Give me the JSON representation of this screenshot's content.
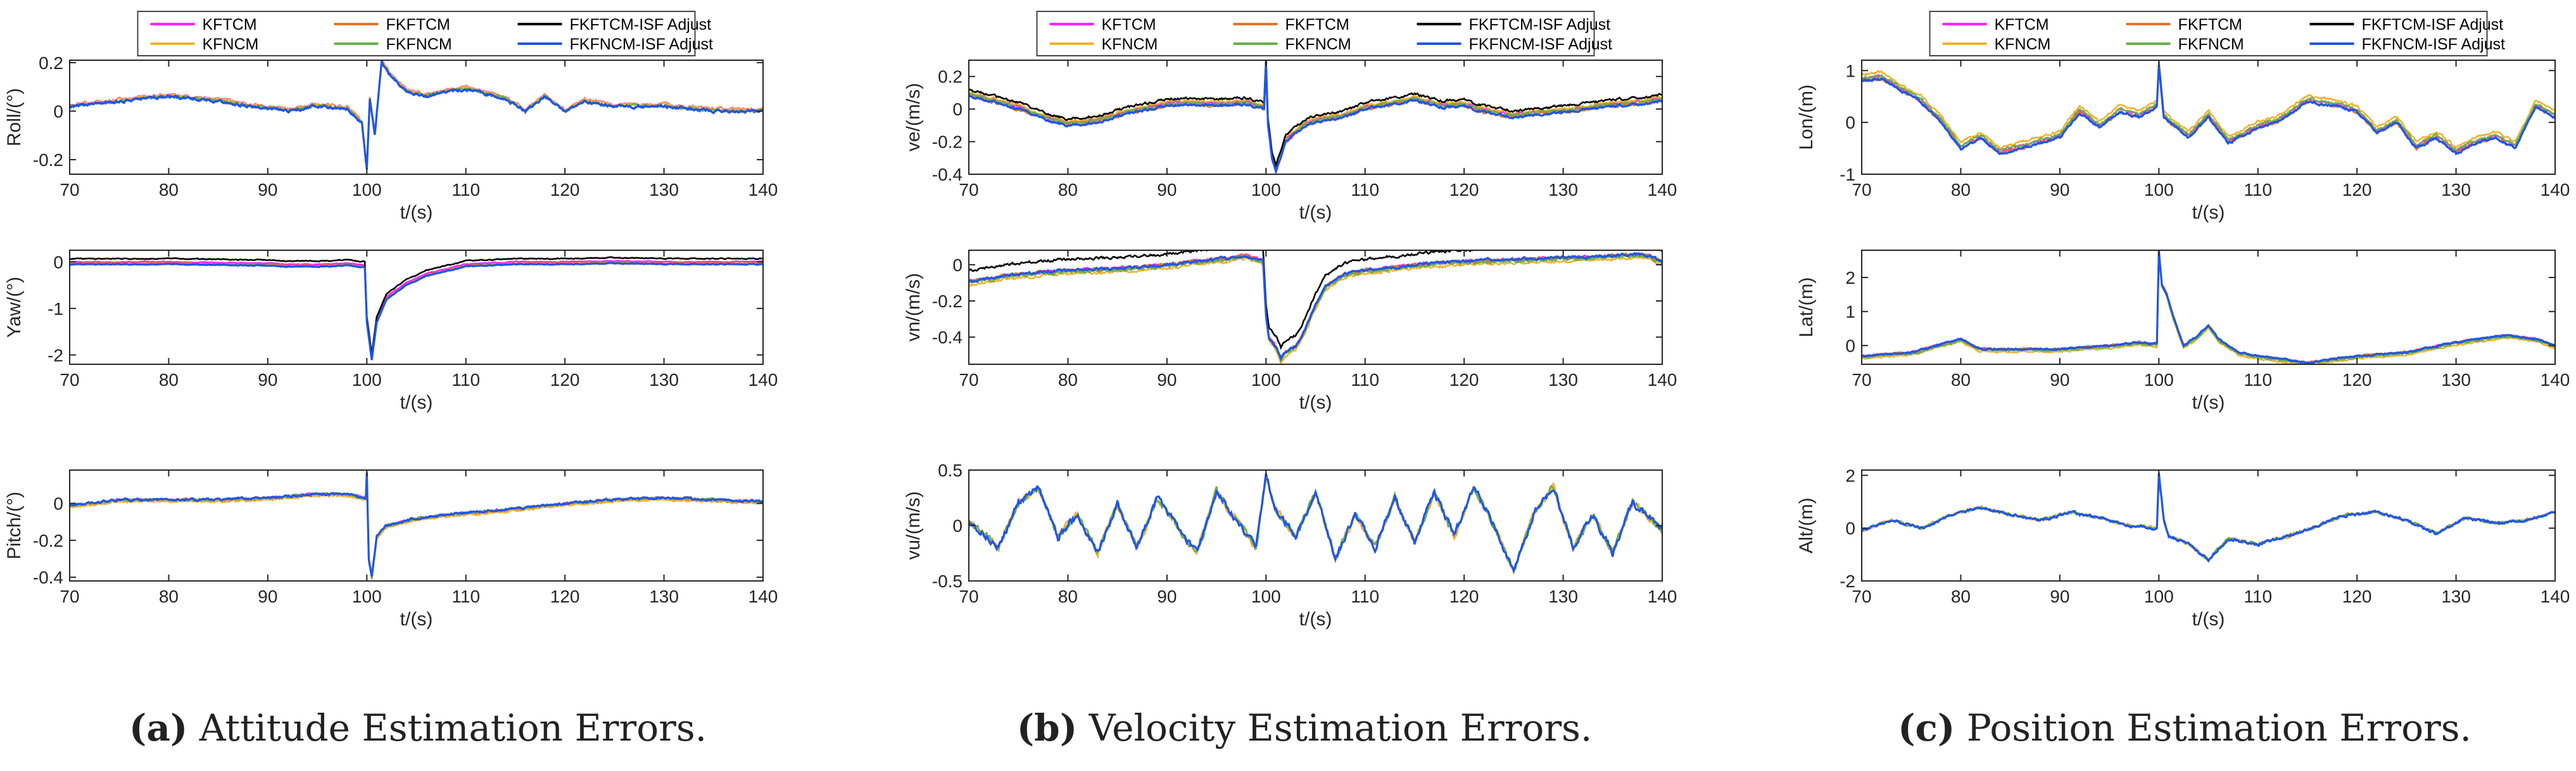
{
  "legend_entries": [
    {
      "name": "KFTCM",
      "color": "#ff22ff"
    },
    {
      "name": "FKFTCM",
      "color": "#e4742c"
    },
    {
      "name": "FKFTCM-ISF Adjust",
      "color": "#000000"
    },
    {
      "name": "KFNCM",
      "color": "#f2b32c"
    },
    {
      "name": "FKFNCM",
      "color": "#6ab04c"
    },
    {
      "name": "FKFNCM-ISF Adjust",
      "color": "#1f56e8"
    }
  ],
  "captions": [
    {
      "letter": "(a)",
      "text": " Attitude Estimation Errors."
    },
    {
      "letter": "(b)",
      "text": " Velocity Estimation Errors."
    },
    {
      "letter": "(c)",
      "text": " Position Estimation Errors."
    }
  ],
  "chart_data": [
    {
      "type": "line",
      "panel": "a",
      "row": 0,
      "title": "",
      "xlabel": "t/(s)",
      "ylabel": "Roll/(°)",
      "xlim": [
        70,
        140
      ],
      "ylim": [
        -0.26,
        0.21
      ],
      "xticks": [
        "70",
        "80",
        "90",
        "100",
        "110",
        "120",
        "130",
        "140"
      ],
      "yticks": [
        "-0.2",
        "0",
        "0.2"
      ],
      "series_names": [
        "KFTCM",
        "FKFTCM",
        "FKFTCM-ISF Adjust",
        "KFNCM",
        "FKFNCM",
        "FKFNCM-ISF Adjust"
      ],
      "x": [
        70,
        75,
        80,
        85,
        88,
        92,
        95,
        98,
        99.5,
        100,
        100.3,
        100.8,
        101.5,
        102.5,
        104,
        106,
        108,
        110,
        112,
        114,
        116,
        118,
        120,
        122,
        125,
        130,
        135,
        140
      ],
      "y": [
        0.02,
        0.04,
        0.06,
        0.04,
        0.02,
        0.0,
        0.02,
        0.01,
        -0.05,
        -0.24,
        0.05,
        -0.1,
        0.2,
        0.14,
        0.08,
        0.06,
        0.08,
        0.09,
        0.07,
        0.05,
        0.0,
        0.06,
        0.0,
        0.04,
        0.02,
        0.02,
        0.0,
        0.0
      ],
      "noise": 0.012,
      "seed": 11,
      "offset": {
        "KFTCM": 0.008,
        "FKFTCM": 0.004,
        "KFNCM": 0.006,
        "FKFNCM": 0.002,
        "FKFTCM-ISF Adjust": 0.001
      }
    },
    {
      "type": "line",
      "panel": "a",
      "row": 1,
      "title": "",
      "xlabel": "t/(s)",
      "ylabel": "Yaw/(°)",
      "xlim": [
        70,
        140
      ],
      "ylim": [
        -2.2,
        0.25
      ],
      "xticks": [
        "70",
        "80",
        "90",
        "100",
        "110",
        "120",
        "130",
        "140"
      ],
      "yticks": [
        "-2",
        "-1",
        "0"
      ],
      "series_names": [
        "KFTCM",
        "FKFTCM",
        "FKFTCM-ISF Adjust",
        "KFNCM",
        "FKFNCM",
        "FKFNCM-ISF Adjust"
      ],
      "x": [
        70,
        80,
        90,
        92,
        95,
        98,
        99.8,
        100,
        100.5,
        101,
        102,
        104,
        106,
        108,
        110,
        115,
        120,
        125,
        130,
        135,
        140
      ],
      "y": [
        -0.05,
        -0.05,
        -0.08,
        -0.1,
        -0.1,
        -0.08,
        -0.12,
        -1.3,
        -2.1,
        -1.3,
        -0.8,
        -0.5,
        -0.3,
        -0.2,
        -0.1,
        -0.05,
        -0.05,
        -0.03,
        -0.05,
        -0.05,
        -0.05
      ],
      "noise": 0.02,
      "seed": 23,
      "offset": {
        "KFTCM": 0.05,
        "FKFTCM": 0.02,
        "FKFTCM-ISF Adjust": 0.12
      }
    },
    {
      "type": "line",
      "panel": "a",
      "row": 2,
      "title": "",
      "xlabel": "t/(s)",
      "ylabel": "Pitch/(°)",
      "xlim": [
        70,
        140
      ],
      "ylim": [
        -0.42,
        0.18
      ],
      "xticks": [
        "70",
        "80",
        "90",
        "100",
        "110",
        "120",
        "130",
        "140"
      ],
      "yticks": [
        "-0.4",
        "-0.2",
        "0"
      ],
      "series_names": [
        "KFTCM",
        "FKFTCM",
        "FKFTCM-ISF Adjust",
        "KFNCM",
        "FKFNCM",
        "FKFNCM-ISF Adjust"
      ],
      "x": [
        70,
        72,
        75,
        80,
        85,
        90,
        95,
        98,
        99.9,
        100,
        100.2,
        100.5,
        101,
        102,
        105,
        110,
        115,
        120,
        125,
        130,
        135,
        140
      ],
      "y": [
        -0.01,
        0.0,
        0.02,
        0.02,
        0.02,
        0.03,
        0.05,
        0.05,
        0.03,
        0.17,
        -0.3,
        -0.4,
        -0.18,
        -0.12,
        -0.08,
        -0.05,
        -0.03,
        0.0,
        0.02,
        0.03,
        0.02,
        0.01
      ],
      "noise": 0.012,
      "seed": 37,
      "offset": {
        "KFNCM": -0.01,
        "FKFTCM": -0.006
      }
    },
    {
      "type": "line",
      "panel": "b",
      "row": 0,
      "title": "",
      "xlabel": "t/(s)",
      "ylabel": "ve/(m/s)",
      "xlim": [
        70,
        140
      ],
      "ylim": [
        -0.4,
        0.3
      ],
      "xticks": [
        "70",
        "80",
        "90",
        "100",
        "110",
        "120",
        "130",
        "140"
      ],
      "yticks": [
        "-0.4",
        "-0.2",
        "0",
        "0.2"
      ],
      "series_names": [
        "KFTCM",
        "FKFTCM",
        "FKFTCM-ISF Adjust",
        "KFNCM",
        "FKFNCM",
        "FKFNCM-ISF Adjust"
      ],
      "x": [
        70,
        72,
        75,
        78,
        80,
        83,
        86,
        90,
        92,
        95,
        98,
        99.8,
        100,
        100.2,
        100.6,
        101,
        102,
        104,
        106,
        108,
        110,
        112,
        115,
        118,
        120,
        122,
        125,
        128,
        130,
        133,
        135,
        138,
        140
      ],
      "y": [
        0.08,
        0.05,
        0.0,
        -0.07,
        -0.1,
        -0.08,
        -0.03,
        0.02,
        0.03,
        0.02,
        0.03,
        0.0,
        0.27,
        -0.1,
        -0.3,
        -0.38,
        -0.2,
        -0.1,
        -0.07,
        -0.05,
        0.0,
        0.02,
        0.05,
        0.01,
        0.02,
        -0.02,
        -0.05,
        -0.03,
        -0.02,
        0.0,
        0.02,
        0.03,
        0.05
      ],
      "noise": 0.015,
      "seed": 41,
      "offset": {
        "KFNCM": 0.025,
        "FKFNCM": 0.012,
        "FKFTCM-ISF Adjust": 0.04,
        "KFTCM": 0.015
      }
    },
    {
      "type": "line",
      "panel": "b",
      "row": 1,
      "title": "",
      "xlabel": "t/(s)",
      "ylabel": "vn/(m/s)",
      "xlim": [
        70,
        140
      ],
      "ylim": [
        -0.55,
        0.08
      ],
      "xticks": [
        "70",
        "80",
        "90",
        "100",
        "110",
        "120",
        "130",
        "140"
      ],
      "yticks": [
        "-0.4",
        "-0.2",
        "0"
      ],
      "series_names": [
        "KFTCM",
        "FKFTCM",
        "FKFTCM-ISF Adjust",
        "KFNCM",
        "FKFNCM",
        "FKFNCM-ISF Adjust"
      ],
      "x": [
        70,
        75,
        80,
        85,
        90,
        95,
        98,
        99.7,
        100,
        100.3,
        101,
        101.5,
        102,
        103,
        104,
        105,
        106,
        108,
        110,
        115,
        120,
        125,
        130,
        135,
        138,
        140
      ],
      "y": [
        -0.09,
        -0.05,
        -0.03,
        -0.02,
        0.0,
        0.03,
        0.05,
        0.02,
        -0.28,
        -0.4,
        -0.45,
        -0.52,
        -0.48,
        -0.45,
        -0.35,
        -0.22,
        -0.12,
        -0.05,
        -0.03,
        0.0,
        0.02,
        0.03,
        0.04,
        0.05,
        0.06,
        0.02
      ],
      "noise": 0.015,
      "seed": 53,
      "offset": {
        "KFNCM": -0.02,
        "FKFNCM": -0.01,
        "FKFTCM-ISF Adjust": 0.06
      }
    },
    {
      "type": "line",
      "panel": "b",
      "row": 2,
      "title": "",
      "xlabel": "t/(s)",
      "ylabel": "vu/(m/s)",
      "xlim": [
        70,
        140
      ],
      "ylim": [
        -0.5,
        0.5
      ],
      "xticks": [
        "70",
        "80",
        "90",
        "100",
        "110",
        "120",
        "130",
        "140"
      ],
      "yticks": [
        "-0.5",
        "0",
        "0.5"
      ],
      "series_names": [
        "KFTCM",
        "FKFTCM",
        "FKFTCM-ISF Adjust",
        "KFNCM",
        "FKFNCM",
        "FKFNCM-ISF Adjust"
      ],
      "x": [
        70,
        73,
        75,
        77,
        79,
        81,
        83,
        85,
        87,
        89,
        91,
        93,
        95,
        97,
        99,
        100,
        101,
        103,
        105,
        107,
        109,
        111,
        113,
        115,
        117,
        119,
        121,
        123,
        125,
        127,
        129,
        131,
        133,
        135,
        137,
        139,
        140
      ],
      "y": [
        0.05,
        -0.2,
        0.2,
        0.35,
        -0.1,
        0.1,
        -0.25,
        0.2,
        -0.2,
        0.25,
        0.0,
        -0.25,
        0.3,
        0.05,
        -0.2,
        0.45,
        0.15,
        -0.1,
        0.3,
        -0.3,
        0.1,
        -0.2,
        0.25,
        -0.15,
        0.3,
        -0.1,
        0.35,
        0.0,
        -0.42,
        0.1,
        0.35,
        -0.2,
        0.1,
        -0.25,
        0.2,
        0.05,
        -0.05
      ],
      "noise": 0.06,
      "seed": 67,
      "offset": {}
    },
    {
      "type": "line",
      "panel": "c",
      "row": 0,
      "title": "",
      "xlabel": "t/(s)",
      "ylabel": "Lon/(m)",
      "xlim": [
        70,
        140
      ],
      "ylim": [
        -1.0,
        1.2
      ],
      "xticks": [
        "70",
        "80",
        "90",
        "100",
        "110",
        "120",
        "130",
        "140"
      ],
      "yticks": [
        "-1",
        "0",
        "1"
      ],
      "series_names": [
        "KFTCM",
        "FKFTCM",
        "FKFTCM-ISF Adjust",
        "KFNCM",
        "FKFNCM",
        "FKFNCM-ISF Adjust"
      ],
      "x": [
        70,
        72,
        74,
        76,
        78,
        80,
        82,
        84,
        86,
        88,
        90,
        92,
        94,
        96,
        98,
        99.8,
        100,
        100.5,
        101,
        103,
        105,
        107,
        110,
        112,
        115,
        118,
        120,
        122,
        124,
        126,
        128,
        130,
        132,
        134,
        136,
        138,
        140
      ],
      "y": [
        0.8,
        0.85,
        0.6,
        0.4,
        0.0,
        -0.5,
        -0.3,
        -0.6,
        -0.5,
        -0.4,
        -0.3,
        0.2,
        -0.1,
        0.2,
        0.1,
        0.3,
        1.1,
        0.1,
        0.0,
        -0.3,
        0.1,
        -0.4,
        -0.1,
        0.0,
        0.4,
        0.3,
        0.2,
        -0.2,
        0.0,
        -0.5,
        -0.3,
        -0.6,
        -0.4,
        -0.3,
        -0.5,
        0.3,
        0.1
      ],
      "noise": 0.05,
      "seed": 71,
      "offset": {
        "KFNCM": 0.12,
        "FKFNCM": 0.06,
        "KFTCM": 0.04
      }
    },
    {
      "type": "line",
      "panel": "c",
      "row": 1,
      "title": "",
      "xlabel": "t/(s)",
      "ylabel": "Lat/(m)",
      "xlim": [
        70,
        140
      ],
      "ylim": [
        -0.55,
        2.8
      ],
      "xticks": [
        "70",
        "80",
        "90",
        "100",
        "110",
        "120",
        "130",
        "140"
      ],
      "yticks": [
        "0",
        "1",
        "2"
      ],
      "series_names": [
        "KFTCM",
        "FKFTCM",
        "FKFTCM-ISF Adjust",
        "KFNCM",
        "FKFNCM",
        "FKFNCM-ISF Adjust"
      ],
      "x": [
        70,
        75,
        80,
        82,
        85,
        90,
        95,
        98,
        99.8,
        100,
        100.3,
        100.8,
        101.5,
        102.5,
        104,
        105,
        106,
        108,
        110,
        115,
        120,
        125,
        130,
        135,
        138,
        140
      ],
      "y": [
        -0.3,
        -0.2,
        0.2,
        -0.1,
        -0.1,
        -0.1,
        0.0,
        0.1,
        0.05,
        2.8,
        1.8,
        1.5,
        0.8,
        0.0,
        0.3,
        0.6,
        0.2,
        -0.2,
        -0.3,
        -0.5,
        -0.3,
        -0.2,
        0.1,
        0.3,
        0.2,
        0.0
      ],
      "noise": 0.05,
      "seed": 83,
      "offset": {
        "KFNCM": -0.08,
        "FKFNCM": -0.04
      }
    },
    {
      "type": "line",
      "panel": "c",
      "row": 2,
      "title": "",
      "xlabel": "t/(s)",
      "ylabel": "Alt/(m)",
      "xlim": [
        70,
        140
      ],
      "ylim": [
        -2.0,
        2.2
      ],
      "xticks": [
        "70",
        "80",
        "90",
        "100",
        "110",
        "120",
        "130",
        "140"
      ],
      "yticks": [
        "-2",
        "0",
        "2"
      ],
      "series_names": [
        "KFTCM",
        "FKFTCM",
        "FKFTCM-ISF Adjust",
        "KFNCM",
        "FKFNCM",
        "FKFNCM-ISF Adjust"
      ],
      "x": [
        70,
        73,
        76,
        79,
        82,
        85,
        88,
        91,
        94,
        97,
        99.8,
        100,
        100.5,
        101,
        103,
        105,
        107,
        110,
        113,
        116,
        119,
        122,
        125,
        128,
        131,
        134,
        137,
        140
      ],
      "y": [
        -0.1,
        0.3,
        0.0,
        0.5,
        0.8,
        0.5,
        0.3,
        0.6,
        0.4,
        0.1,
        0.0,
        2.1,
        0.3,
        -0.3,
        -0.6,
        -1.2,
        -0.4,
        -0.6,
        -0.3,
        0.1,
        0.5,
        0.6,
        0.3,
        -0.2,
        0.4,
        0.2,
        0.3,
        0.6
      ],
      "noise": 0.1,
      "seed": 97,
      "offset": {}
    }
  ]
}
